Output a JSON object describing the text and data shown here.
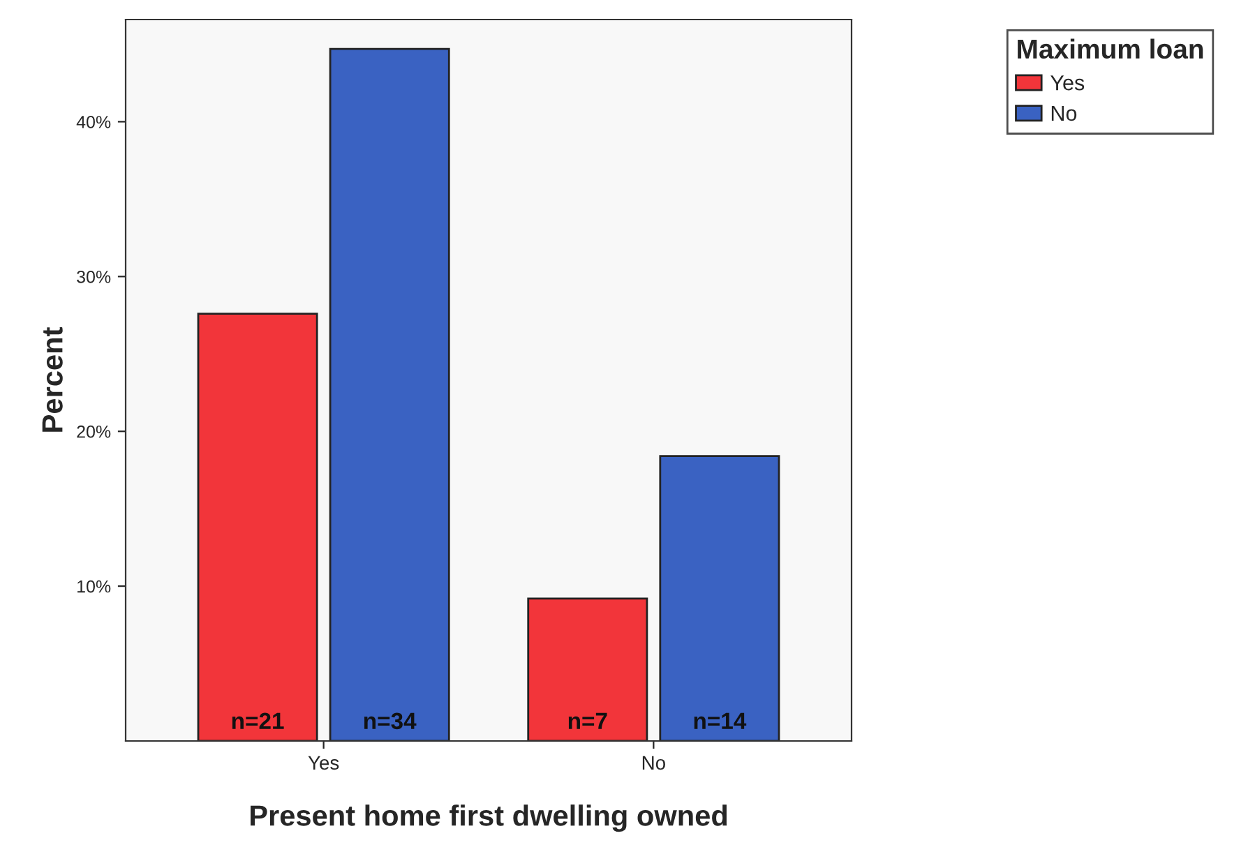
{
  "chart_data": {
    "type": "bar",
    "xlabel": "Present home first dwelling owned",
    "ylabel": "Percent",
    "legend_title": "Maximum loan",
    "legend": "top right",
    "categories": [
      "Yes",
      "No"
    ],
    "series": [
      {
        "name": "Yes",
        "color": "#f2353a",
        "values": [
          27.6,
          9.2
        ]
      },
      {
        "name": "No",
        "color": "#3a62c2",
        "values": [
          44.7,
          18.4
        ]
      }
    ],
    "annotations": [
      "n=21",
      "n=7",
      "n=34",
      "n=14"
    ],
    "ylim": [
      0,
      46.6
    ],
    "yticks": [
      {
        "value": 10,
        "label": "10%"
      },
      {
        "value": 20,
        "label": "20%"
      },
      {
        "value": 30,
        "label": "30%"
      },
      {
        "value": 40,
        "label": "40%"
      }
    ],
    "grid": false
  }
}
